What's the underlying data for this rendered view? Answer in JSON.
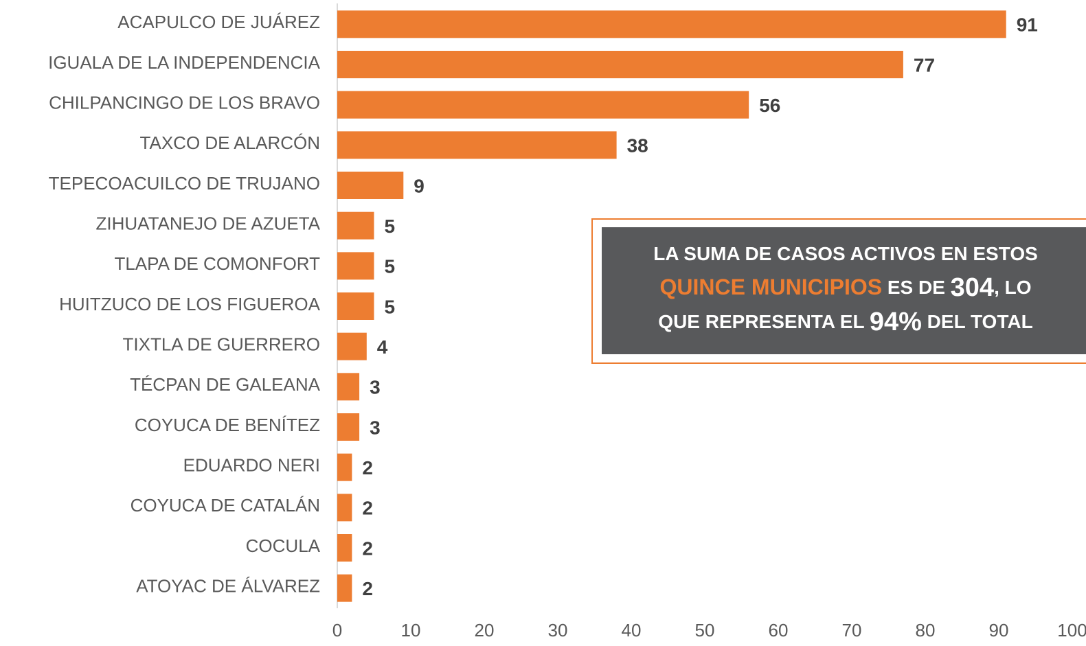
{
  "chart_data": {
    "type": "bar",
    "orientation": "horizontal",
    "categories": [
      "ACAPULCO DE JUÁREZ",
      "IGUALA DE LA INDEPENDENCIA",
      "CHILPANCINGO DE LOS BRAVO",
      "TAXCO DE ALARCÓN",
      "TEPECOACUILCO DE TRUJANO",
      "ZIHUATANEJO DE AZUETA",
      "TLAPA DE COMONFORT",
      "HUITZUCO DE LOS FIGUEROA",
      "TIXTLA DE GUERRERO",
      "TÉCPAN DE GALEANA",
      "COYUCA DE BENÍTEZ",
      "EDUARDO NERI",
      "COYUCA DE CATALÁN",
      "COCULA",
      "ATOYAC DE ÁLVAREZ"
    ],
    "values": [
      91,
      77,
      56,
      38,
      9,
      5,
      5,
      5,
      4,
      3,
      3,
      2,
      2,
      2,
      2
    ],
    "color": "#ed7d31",
    "xlim": [
      0,
      100
    ],
    "xticks": [
      0,
      10,
      20,
      30,
      40,
      50,
      60,
      70,
      80,
      90,
      100
    ],
    "annotation": {
      "parts": [
        "LA SUMA DE CASOS ACTIVOS EN ESTOS",
        "QUINCE MUNICIPIOS",
        " ES DE ",
        "304",
        ", LO",
        "QUE REPRESENTA EL ",
        "94%",
        " DEL TOTAL"
      ]
    }
  }
}
